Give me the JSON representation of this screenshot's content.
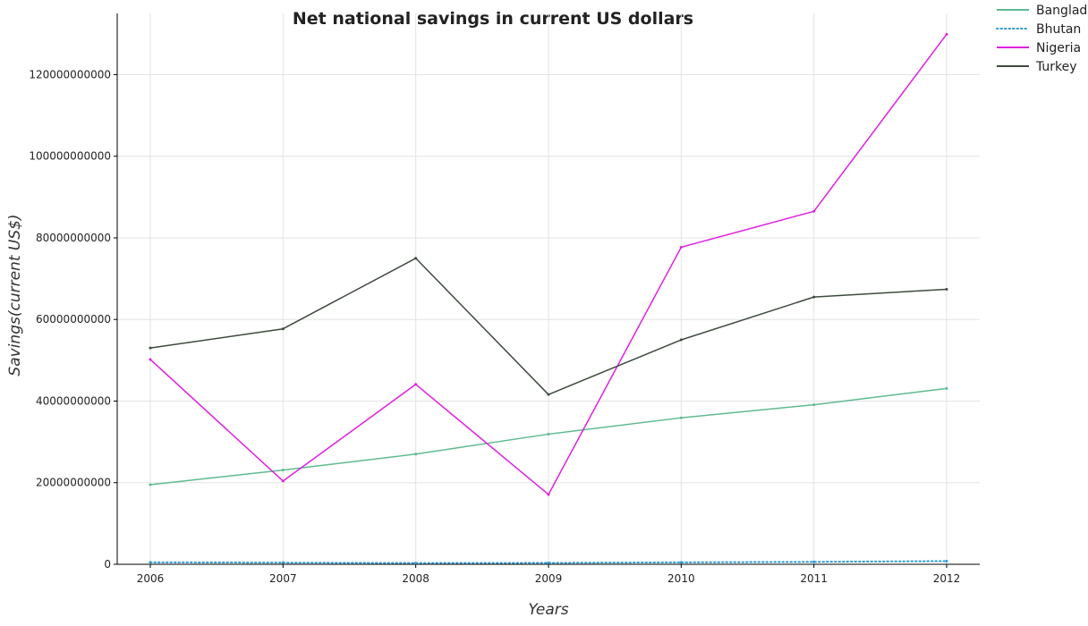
{
  "chart_data": {
    "type": "line",
    "title": "Net national savings in current US dollars",
    "xlabel": "Years",
    "ylabel": "Savings(current US$)",
    "categories": [
      "2006",
      "2007",
      "2008",
      "2009",
      "2010",
      "2011",
      "2012"
    ],
    "ylim": [
      0,
      135000000000
    ],
    "yticks": [
      0,
      20000000000,
      40000000000,
      60000000000,
      80000000000,
      100000000000,
      120000000000
    ],
    "ytick_labels": [
      "0",
      "20000000000",
      "40000000000",
      "60000000000",
      "80000000000",
      "100000000000",
      "120000000000"
    ],
    "grid": true,
    "legend_position": "top-right",
    "series": [
      {
        "name": "Bangladesh",
        "color": "#5fba8f",
        "dash": "solid",
        "values": [
          19500000000,
          23100000000,
          27000000000,
          31900000000,
          35900000000,
          39100000000,
          43100000000
        ]
      },
      {
        "name": "Bhutan",
        "color": "#2e9bd6",
        "dash": "dotted",
        "values": [
          480000000,
          400000000,
          310000000,
          350000000,
          470000000,
          600000000,
          780000000
        ]
      },
      {
        "name": "Nigeria",
        "color": "#e020e0",
        "dash": "solid",
        "values": [
          50200000000,
          20400000000,
          44100000000,
          17100000000,
          77700000000,
          86500000000,
          129900000000
        ]
      },
      {
        "name": "Turkey",
        "color": "#3e4a3e",
        "dash": "solid",
        "values": [
          53000000000,
          57700000000,
          75000000000,
          41600000000,
          55000000000,
          65500000000,
          67400000000
        ]
      }
    ]
  }
}
